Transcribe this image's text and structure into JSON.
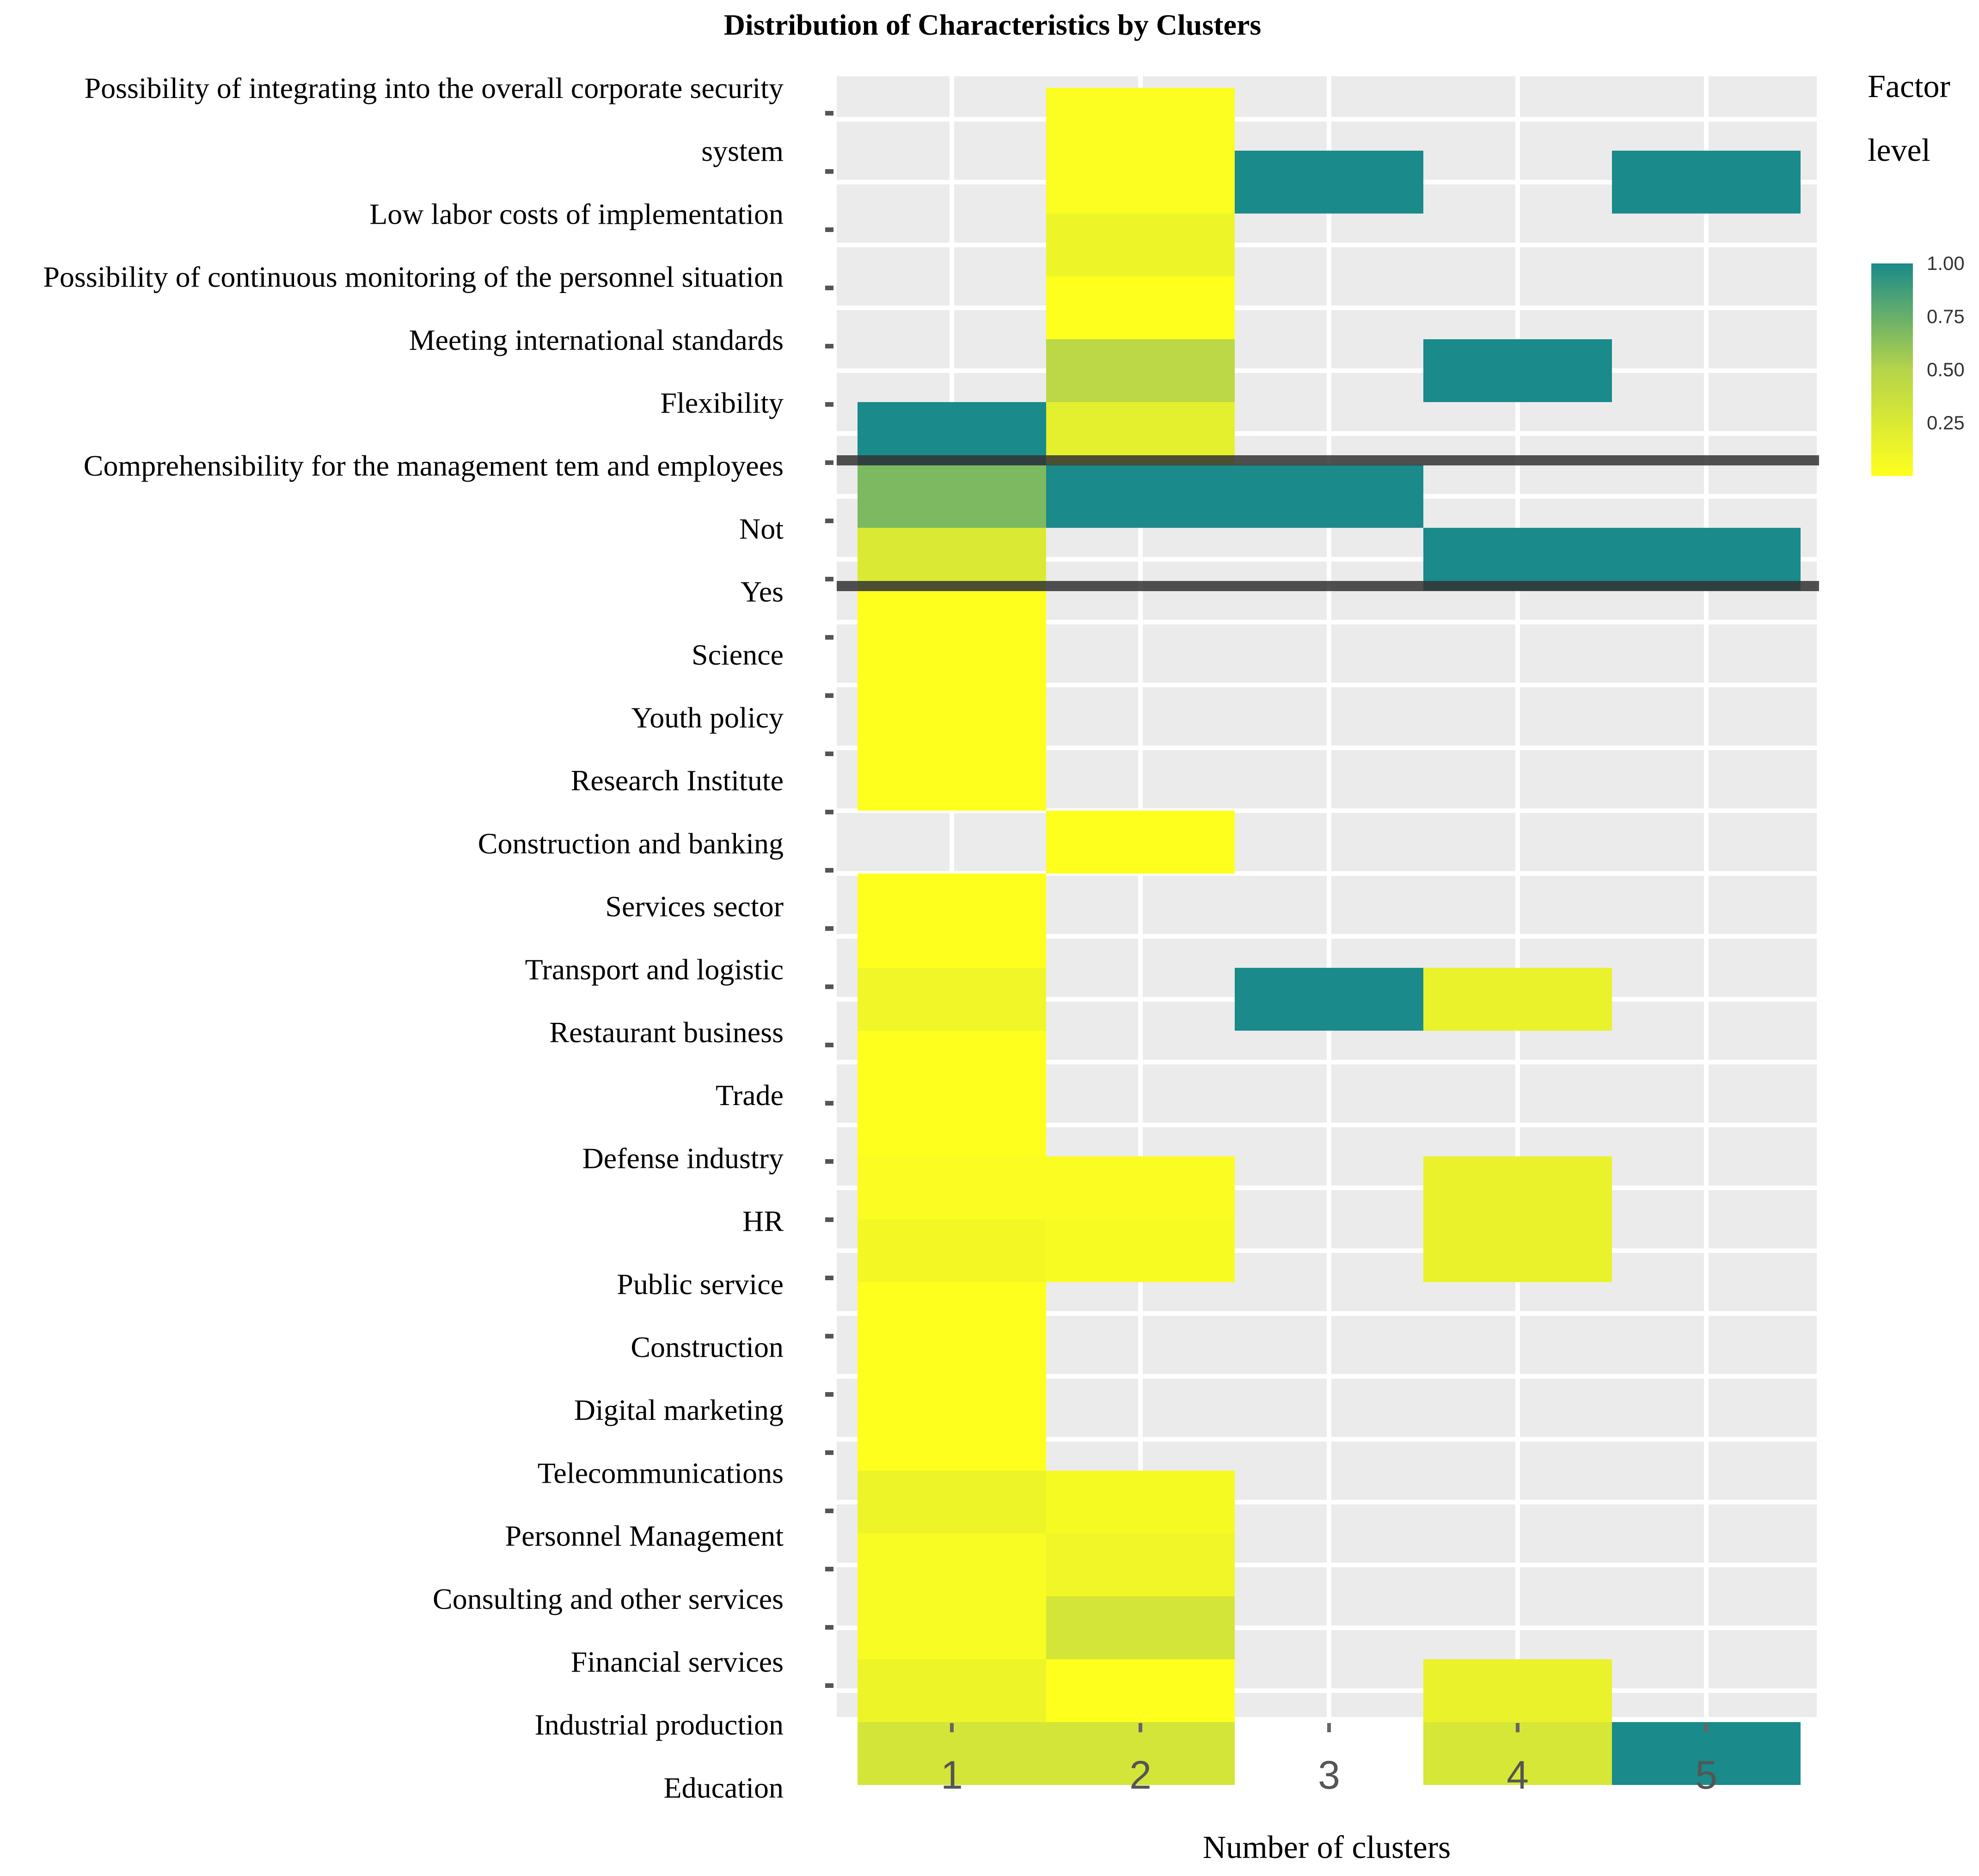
{
  "chart_data": {
    "type": "heatmap",
    "title": "Distribution of Characteristics by Clusters",
    "xlabel": "Number of clusters",
    "ylabel": "",
    "x_categories": [
      "1",
      "2",
      "3",
      "4",
      "5"
    ],
    "y_labels": [
      "Possibility of integrating into the overall corporate security",
      "system",
      "Low labor costs of implementation",
      "Possibility of continuous monitoring of the personnel situation",
      "Meeting international standards",
      "Flexibility",
      "Comprehensibility for the management tem and employees",
      "Not",
      "Yes",
      "Science",
      "Youth policy",
      "Research Institute",
      "Construction and banking",
      "Services sector",
      "Transport and logistic",
      "Restaurant business",
      "Trade",
      "Defense industry",
      "HR",
      "Public service",
      "Construction",
      "Digital marketing",
      "Telecommunications",
      "Personnel Management",
      "Consulting and other services",
      "Financial services",
      "Industrial production",
      "Education"
    ],
    "y_range": [
      0,
      27.5
    ],
    "cells": [
      {
        "cluster": 2,
        "y0": 0,
        "y1": 2,
        "value": 0.02
      },
      {
        "cluster": 3,
        "y0": 1,
        "y1": 2,
        "value": 1.0
      },
      {
        "cluster": 5,
        "y0": 1,
        "y1": 2,
        "value": 1.0
      },
      {
        "cluster": 2,
        "y0": 2,
        "y1": 3,
        "value": 0.12
      },
      {
        "cluster": 2,
        "y0": 3,
        "y1": 4,
        "value": 0.0
      },
      {
        "cluster": 2,
        "y0": 4,
        "y1": 5,
        "value": 0.45
      },
      {
        "cluster": 4,
        "y0": 4,
        "y1": 5,
        "value": 1.0
      },
      {
        "cluster": 1,
        "y0": 5,
        "y1": 6,
        "value": 1.0
      },
      {
        "cluster": 2,
        "y0": 5,
        "y1": 6,
        "value": 0.18
      },
      {
        "cluster": 1,
        "y0": 6,
        "y1": 7,
        "value": 0.68
      },
      {
        "cluster": 2,
        "y0": 6,
        "y1": 7,
        "value": 1.0
      },
      {
        "cluster": 3,
        "y0": 6,
        "y1": 7,
        "value": 1.0
      },
      {
        "cluster": 1,
        "y0": 7,
        "y1": 8,
        "value": 0.25
      },
      {
        "cluster": 4,
        "y0": 7,
        "y1": 8,
        "value": 1.0
      },
      {
        "cluster": 5,
        "y0": 7,
        "y1": 8,
        "value": 1.0
      },
      {
        "cluster": 1,
        "y0": 8,
        "y1": 11.5,
        "value": 0.0
      },
      {
        "cluster": 2,
        "y0": 11.5,
        "y1": 12.5,
        "value": 0.0
      },
      {
        "cluster": 1,
        "y0": 12.5,
        "y1": 14,
        "value": 0.0
      },
      {
        "cluster": 1,
        "y0": 14,
        "y1": 15,
        "value": 0.1
      },
      {
        "cluster": 3,
        "y0": 14,
        "y1": 15,
        "value": 1.0
      },
      {
        "cluster": 4,
        "y0": 14,
        "y1": 15,
        "value": 0.15
      },
      {
        "cluster": 1,
        "y0": 15,
        "y1": 17,
        "value": 0.0
      },
      {
        "cluster": 1,
        "y0": 17,
        "y1": 18,
        "value": 0.03
      },
      {
        "cluster": 2,
        "y0": 17,
        "y1": 18,
        "value": 0.03
      },
      {
        "cluster": 4,
        "y0": 17,
        "y1": 18,
        "value": 0.15
      },
      {
        "cluster": 1,
        "y0": 18,
        "y1": 19,
        "value": 0.08
      },
      {
        "cluster": 2,
        "y0": 18,
        "y1": 19,
        "value": 0.05
      },
      {
        "cluster": 4,
        "y0": 18,
        "y1": 19,
        "value": 0.15
      },
      {
        "cluster": 1,
        "y0": 19,
        "y1": 22,
        "value": 0.0
      },
      {
        "cluster": 1,
        "y0": 22,
        "y1": 23,
        "value": 0.12
      },
      {
        "cluster": 2,
        "y0": 22,
        "y1": 23,
        "value": 0.06
      },
      {
        "cluster": 1,
        "y0": 23,
        "y1": 24,
        "value": 0.04
      },
      {
        "cluster": 2,
        "y0": 23,
        "y1": 24,
        "value": 0.1
      },
      {
        "cluster": 1,
        "y0": 24,
        "y1": 25,
        "value": 0.04
      },
      {
        "cluster": 2,
        "y0": 24,
        "y1": 25,
        "value": 0.3
      },
      {
        "cluster": 1,
        "y0": 25,
        "y1": 26,
        "value": 0.12
      },
      {
        "cluster": 2,
        "y0": 25,
        "y1": 26,
        "value": 0.0
      },
      {
        "cluster": 4,
        "y0": 25,
        "y1": 26,
        "value": 0.15
      },
      {
        "cluster": 1,
        "y0": 26,
        "y1": 27,
        "value": 0.3
      },
      {
        "cluster": 2,
        "y0": 26,
        "y1": 27,
        "value": 0.3
      },
      {
        "cluster": 4,
        "y0": 26,
        "y1": 27,
        "value": 0.28
      },
      {
        "cluster": 5,
        "y0": 26,
        "y1": 27,
        "value": 1.0
      }
    ],
    "separator_lines_after_rows": [
      6,
      8
    ],
    "legend": {
      "title_lines": [
        "Factor",
        "level"
      ],
      "ticks": [
        "1.00",
        "0.75",
        "0.50",
        "0.25"
      ],
      "tick_values": [
        1.0,
        0.75,
        0.5,
        0.25
      ],
      "range": [
        0,
        1.0
      ],
      "placement": "right",
      "colors": {
        "low": "#ffff1e",
        "mid": "#b5d44a",
        "high": "#1a8a8a"
      }
    },
    "grid": true
  }
}
